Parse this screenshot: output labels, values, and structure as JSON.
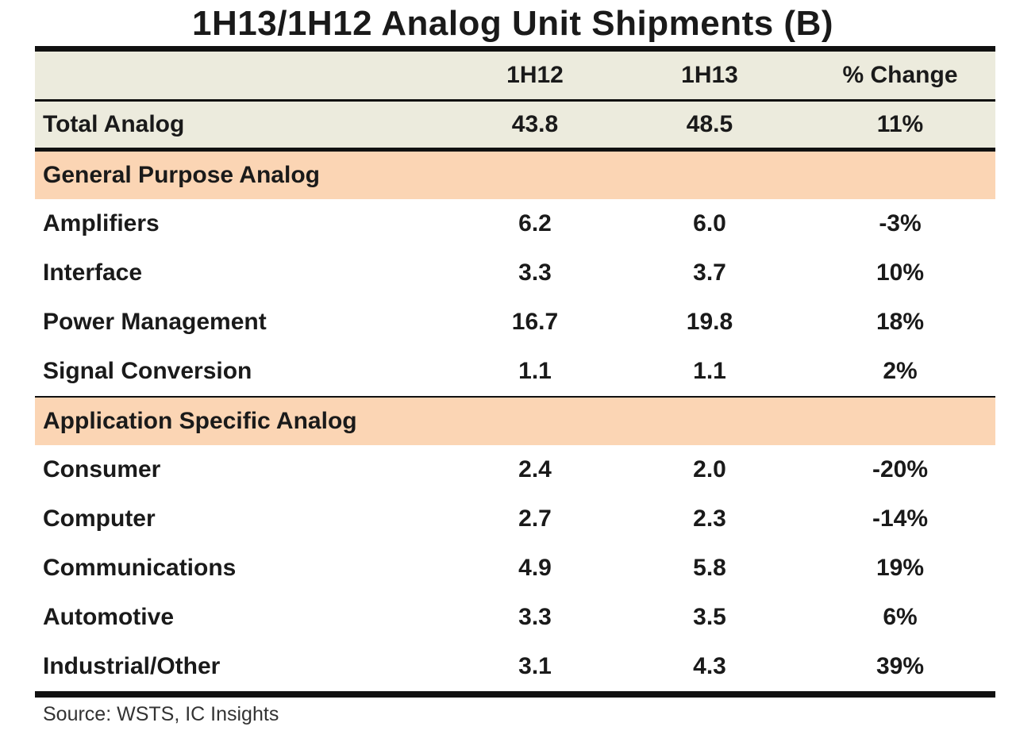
{
  "title": "1H13/1H12 Analog Unit Shipments (B)",
  "source": "Source: WSTS, IC Insights",
  "chart_data": {
    "type": "table",
    "title": "1H13/1H12 Analog Unit Shipments (B)",
    "columns": [
      "",
      "1H12",
      "1H13",
      "% Change"
    ],
    "total": {
      "label": "Total Analog",
      "1H12": "43.8",
      "1H13": "48.5",
      "change": "11%"
    },
    "sections": [
      {
        "name": "General Purpose Analog",
        "rows": [
          {
            "label": "Amplifiers",
            "1H12": "6.2",
            "1H13": "6.0",
            "change": "-3%"
          },
          {
            "label": "Interface",
            "1H12": "3.3",
            "1H13": "3.7",
            "change": "10%"
          },
          {
            "label": "Power Management",
            "1H12": "16.7",
            "1H13": "19.8",
            "change": "18%"
          },
          {
            "label": "Signal Conversion",
            "1H12": "1.1",
            "1H13": "1.1",
            "change": "2%"
          }
        ]
      },
      {
        "name": "Application Specific Analog",
        "rows": [
          {
            "label": "Consumer",
            "1H12": "2.4",
            "1H13": "2.0",
            "change": "-20%"
          },
          {
            "label": "Computer",
            "1H12": "2.7",
            "1H13": "2.3",
            "change": "-14%"
          },
          {
            "label": "Communications",
            "1H12": "4.9",
            "1H13": "5.8",
            "change": "19%"
          },
          {
            "label": "Automotive",
            "1H12": "3.3",
            "1H13": "3.5",
            "change": "6%"
          },
          {
            "label": "Industrial/Other",
            "1H12": "3.1",
            "1H13": "4.3",
            "change": "39%"
          }
        ]
      }
    ],
    "colors": {
      "header_bg": "#ecebdd",
      "section_bg": "#fbd5b4",
      "rule": "#111111"
    }
  }
}
